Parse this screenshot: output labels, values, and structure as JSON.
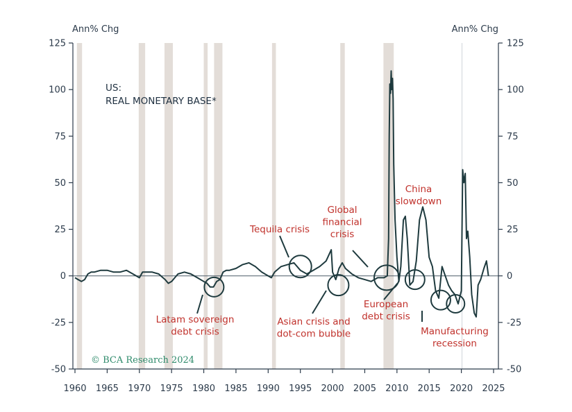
{
  "chart_data": {
    "type": "line",
    "title_lines": [
      "US:",
      "REAL MONETARY BASE*"
    ],
    "left_unit": "Ann% Chg",
    "right_unit": "Ann% Chg",
    "xlim": [
      1960,
      2025
    ],
    "ylim": [
      -50,
      125
    ],
    "x_ticks": [
      1960,
      1965,
      1970,
      1975,
      1980,
      1985,
      1990,
      1995,
      2000,
      2005,
      2010,
      2015,
      2020,
      2025
    ],
    "y_ticks": [
      125,
      100,
      75,
      50,
      25,
      0,
      -25,
      -50
    ],
    "recessions": [
      [
        1960.3,
        1961.1
      ],
      [
        1969.9,
        1970.9
      ],
      [
        1973.9,
        1975.2
      ],
      [
        1980.0,
        1980.6
      ],
      [
        1981.6,
        1982.9
      ],
      [
        1990.6,
        1991.2
      ],
      [
        2001.2,
        2001.9
      ],
      [
        2007.9,
        2009.5
      ]
    ],
    "vline_x": 2020.1,
    "series": [
      {
        "color": "#1e3a3e",
        "x": [
          1960.0,
          1960.5,
          1961.0,
          1961.5,
          1962.0,
          1962.5,
          1963.0,
          1964.0,
          1965.0,
          1966.0,
          1967.0,
          1968.0,
          1969.0,
          1970.0,
          1970.5,
          1971.0,
          1972.0,
          1973.0,
          1974.0,
          1974.5,
          1975.0,
          1975.5,
          1976.0,
          1977.0,
          1978.0,
          1979.0,
          1980.0,
          1980.5,
          1981.0,
          1981.5,
          1982.0,
          1982.5,
          1983.0,
          1983.5,
          1984.0,
          1985.0,
          1986.0,
          1987.0,
          1988.0,
          1989.0,
          1990.0,
          1990.5,
          1991.0,
          1992.0,
          1993.0,
          1994.0,
          1995.0,
          1996.0,
          1997.0,
          1998.0,
          1999.0,
          1999.8,
          2000.0,
          2000.5,
          2001.0,
          2001.5,
          2002.0,
          2003.0,
          2004.0,
          2005.0,
          2006.0,
          2007.0,
          2008.0,
          2008.5,
          2008.7,
          2008.8,
          2008.9,
          2009.0,
          2009.1,
          2009.2,
          2009.3,
          2009.4,
          2009.5,
          2009.7,
          2010.0,
          2010.3,
          2010.6,
          2011.0,
          2011.3,
          2011.6,
          2012.0,
          2012.5,
          2013.0,
          2013.5,
          2014.0,
          2014.5,
          2015.0,
          2015.5,
          2016.0,
          2016.5,
          2017.0,
          2017.5,
          2018.0,
          2018.5,
          2019.0,
          2019.5,
          2020.0,
          2020.2,
          2020.4,
          2020.6,
          2020.8,
          2021.0,
          2021.3,
          2021.6,
          2022.0,
          2022.3,
          2022.6,
          2023.0,
          2023.5,
          2023.9,
          2024.2
        ],
        "values": [
          -1,
          -2,
          -3,
          -2,
          1,
          2,
          2,
          3,
          3,
          2,
          2,
          3,
          1,
          -1,
          2,
          2,
          2,
          1,
          -2,
          -4,
          -3,
          -1,
          1,
          2,
          1,
          -1,
          -3,
          -4,
          -6,
          -6,
          -3,
          -2,
          2,
          3,
          3,
          4,
          6,
          7,
          5,
          2,
          0,
          -1,
          2,
          5,
          6,
          7,
          3,
          1,
          3,
          5,
          8,
          14,
          2,
          -2,
          4,
          7,
          4,
          1,
          -1,
          -2,
          -3,
          -1,
          -1,
          0,
          20,
          75,
          103,
          98,
          110,
          100,
          106,
          95,
          60,
          30,
          10,
          -3,
          5,
          30,
          32,
          20,
          -5,
          -3,
          8,
          30,
          37,
          30,
          10,
          5,
          -8,
          -12,
          5,
          0,
          -5,
          -8,
          -10,
          -15,
          -8,
          57,
          50,
          55,
          20,
          24,
          10,
          -10,
          -20,
          -22,
          -5,
          -2,
          4,
          8,
          0
        ]
      }
    ],
    "annotations": [
      {
        "lines": [
          "Latam sovereign",
          "debt crisis"
        ]
      },
      {
        "lines": [
          "Tequila crisis"
        ]
      },
      {
        "lines": [
          "Asian crisis and",
          "dot-com bubble"
        ]
      },
      {
        "lines": [
          "Global",
          "financial",
          "crisis"
        ]
      },
      {
        "lines": [
          "China",
          "slowdown"
        ]
      },
      {
        "lines": [
          "European",
          "debt crisis"
        ]
      },
      {
        "lines": [
          "Manufacturing",
          "recession"
        ]
      }
    ],
    "circles": [
      {
        "x": 1981.6,
        "y": -6
      },
      {
        "x": 1995.0,
        "y": 5
      },
      {
        "x": 2000.9,
        "y": -5
      },
      {
        "x": 2008.4,
        "y": -1
      },
      {
        "x": 2012.8,
        "y": -2
      },
      {
        "x": 2016.8,
        "y": -13
      },
      {
        "x": 2019.1,
        "y": -15
      }
    ],
    "watermark": "© BCA Research 2024"
  }
}
